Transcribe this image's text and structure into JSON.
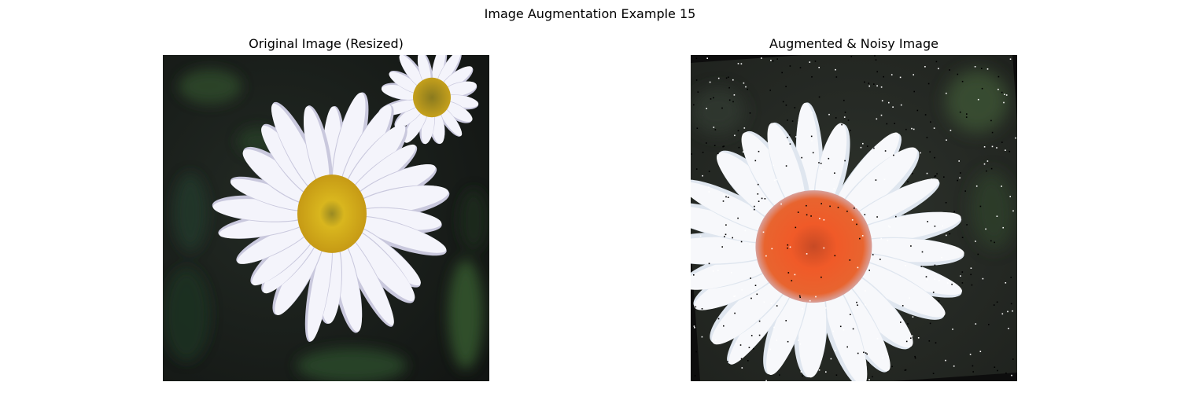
{
  "figure": {
    "title": "Image Augmentation Example 15"
  },
  "panels": [
    {
      "title": "Original Image (Resized)",
      "image": "daisy-photo",
      "colors": {
        "background": "#1a1e1b",
        "petal": "#f4f4fb",
        "petal_shadow": "#c9c8dd",
        "center": "#d8b020",
        "foliage": "#2f4a2c"
      }
    },
    {
      "title": "Augmented & Noisy Image",
      "image": "augmented-daisy-photo",
      "colors": {
        "background": "#2a2d28",
        "petal": "#f7f8fb",
        "center": "#ee5a2a",
        "border": "#0d0d0d"
      }
    }
  ]
}
